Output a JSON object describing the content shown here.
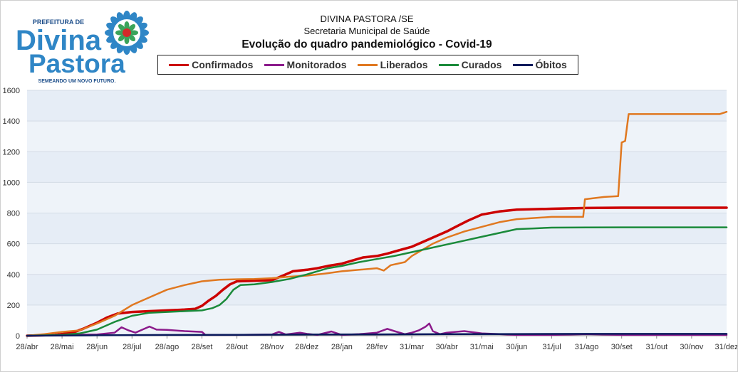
{
  "header": {
    "line1": "DIVINA PASTORA /SE",
    "line2": "Secretaria Municipal de Saúde",
    "title": "Evolução do quadro pandemiológico - Covid-19"
  },
  "logo": {
    "top_text": "PREFEITURA DE",
    "word1": "Divina",
    "word2": "Pastora",
    "tagline": "SEMEANDO UM NOVO FUTURO.",
    "color_primary": "#2f86c6",
    "color_dark": "#1d4e8a",
    "color_red": "#d42a2a"
  },
  "chart_data": {
    "type": "line",
    "title": "Evolução do quadro pandemiológico - Covid-19",
    "xlabel": "",
    "ylabel": "",
    "ylim": [
      0,
      1600
    ],
    "yticks": [
      "0",
      "200",
      "400",
      "600",
      "800",
      "1000",
      "1200",
      "1400",
      "1600"
    ],
    "x_tick_labels": [
      "28/abr",
      "28/mai",
      "28/jun",
      "28/jul",
      "28/ago",
      "28/set",
      "28/out",
      "28/nov",
      "28/dez",
      "28/jan",
      "28/fev",
      "31/mar",
      "30/abr",
      "31/mai",
      "30/jun",
      "31/jul",
      "31/ago",
      "30/set",
      "31/out",
      "30/nov",
      "31/dez"
    ],
    "x_unit": "month index from 28/abr",
    "grid": true,
    "legend_position": "top",
    "series": [
      {
        "name": "Confirmados",
        "color": "#cc0000",
        "width": 3.5,
        "points": [
          [
            0,
            0
          ],
          [
            0.8,
            5
          ],
          [
            1.3,
            20
          ],
          [
            1.6,
            45
          ],
          [
            2.0,
            85
          ],
          [
            2.3,
            120
          ],
          [
            2.6,
            145
          ],
          [
            3.0,
            155
          ],
          [
            3.5,
            160
          ],
          [
            4.0,
            165
          ],
          [
            4.5,
            170
          ],
          [
            4.8,
            175
          ],
          [
            5.0,
            195
          ],
          [
            5.2,
            230
          ],
          [
            5.4,
            260
          ],
          [
            5.6,
            300
          ],
          [
            5.8,
            335
          ],
          [
            6.0,
            355
          ],
          [
            6.5,
            358
          ],
          [
            7.0,
            362
          ],
          [
            7.3,
            390
          ],
          [
            7.6,
            420
          ],
          [
            8.0,
            430
          ],
          [
            8.3,
            440
          ],
          [
            8.6,
            455
          ],
          [
            9.0,
            470
          ],
          [
            9.3,
            490
          ],
          [
            9.6,
            510
          ],
          [
            10.0,
            520
          ],
          [
            10.3,
            535
          ],
          [
            10.6,
            555
          ],
          [
            11.0,
            580
          ],
          [
            11.3,
            610
          ],
          [
            11.6,
            640
          ],
          [
            12.0,
            680
          ],
          [
            12.3,
            715
          ],
          [
            12.6,
            750
          ],
          [
            13.0,
            790
          ],
          [
            13.5,
            810
          ],
          [
            14.0,
            822
          ],
          [
            15.0,
            828
          ],
          [
            16.0,
            833
          ],
          [
            17.0,
            835
          ],
          [
            20.0,
            835
          ]
        ]
      },
      {
        "name": "Monitorados",
        "color": "#8b1a8b",
        "width": 2.5,
        "points": [
          [
            0,
            0
          ],
          [
            1.0,
            5
          ],
          [
            2.0,
            8
          ],
          [
            2.5,
            20
          ],
          [
            2.7,
            55
          ],
          [
            2.9,
            35
          ],
          [
            3.1,
            20
          ],
          [
            3.3,
            40
          ],
          [
            3.5,
            60
          ],
          [
            3.7,
            40
          ],
          [
            4.0,
            38
          ],
          [
            4.5,
            30
          ],
          [
            5.0,
            25
          ],
          [
            5.1,
            5
          ],
          [
            6.0,
            5
          ],
          [
            7.0,
            8
          ],
          [
            7.2,
            25
          ],
          [
            7.4,
            8
          ],
          [
            7.8,
            20
          ],
          [
            8.0,
            12
          ],
          [
            8.3,
            5
          ],
          [
            8.7,
            28
          ],
          [
            9.0,
            5
          ],
          [
            9.5,
            10
          ],
          [
            10.0,
            20
          ],
          [
            10.3,
            45
          ],
          [
            10.5,
            30
          ],
          [
            10.8,
            10
          ],
          [
            11.0,
            20
          ],
          [
            11.2,
            35
          ],
          [
            11.4,
            60
          ],
          [
            11.5,
            80
          ],
          [
            11.6,
            30
          ],
          [
            11.8,
            10
          ],
          [
            12.0,
            20
          ],
          [
            12.5,
            30
          ],
          [
            13.0,
            15
          ],
          [
            13.5,
            10
          ],
          [
            14.0,
            5
          ],
          [
            15.0,
            5
          ],
          [
            16.0,
            10
          ],
          [
            17.0,
            5
          ],
          [
            20.0,
            5
          ]
        ]
      },
      {
        "name": "Liberados",
        "color": "#e07820",
        "width": 2.5,
        "points": [
          [
            0,
            0
          ],
          [
            0.5,
            10
          ],
          [
            1.0,
            25
          ],
          [
            1.5,
            35
          ],
          [
            2.0,
            80
          ],
          [
            2.5,
            130
          ],
          [
            3.0,
            200
          ],
          [
            3.3,
            230
          ],
          [
            3.6,
            260
          ],
          [
            4.0,
            300
          ],
          [
            4.5,
            330
          ],
          [
            5.0,
            355
          ],
          [
            5.5,
            365
          ],
          [
            6.0,
            368
          ],
          [
            6.5,
            370
          ],
          [
            7.0,
            375
          ],
          [
            7.5,
            385
          ],
          [
            8.0,
            392
          ],
          [
            8.5,
            405
          ],
          [
            9.0,
            420
          ],
          [
            9.5,
            430
          ],
          [
            10.0,
            440
          ],
          [
            10.2,
            425
          ],
          [
            10.4,
            460
          ],
          [
            10.8,
            480
          ],
          [
            11.0,
            520
          ],
          [
            11.3,
            560
          ],
          [
            11.6,
            600
          ],
          [
            12.0,
            640
          ],
          [
            12.5,
            680
          ],
          [
            13.0,
            710
          ],
          [
            13.5,
            740
          ],
          [
            14.0,
            760
          ],
          [
            15.0,
            775
          ],
          [
            15.9,
            775
          ],
          [
            15.95,
            890
          ],
          [
            16.5,
            905
          ],
          [
            16.9,
            910
          ],
          [
            17.0,
            1260
          ],
          [
            17.1,
            1270
          ],
          [
            17.2,
            1445
          ],
          [
            19.8,
            1445
          ],
          [
            20.0,
            1460
          ]
        ]
      },
      {
        "name": "Curados",
        "color": "#1a8a3a",
        "width": 2.5,
        "points": [
          [
            0,
            0
          ],
          [
            1.0,
            5
          ],
          [
            1.5,
            15
          ],
          [
            2.0,
            40
          ],
          [
            2.5,
            90
          ],
          [
            3.0,
            130
          ],
          [
            3.5,
            150
          ],
          [
            4.0,
            155
          ],
          [
            4.5,
            160
          ],
          [
            5.0,
            165
          ],
          [
            5.3,
            180
          ],
          [
            5.5,
            200
          ],
          [
            5.7,
            240
          ],
          [
            5.9,
            300
          ],
          [
            6.1,
            330
          ],
          [
            6.5,
            335
          ],
          [
            7.0,
            350
          ],
          [
            7.5,
            370
          ],
          [
            8.0,
            400
          ],
          [
            8.3,
            420
          ],
          [
            8.6,
            440
          ],
          [
            9.0,
            455
          ],
          [
            9.5,
            480
          ],
          [
            10.0,
            500
          ],
          [
            10.5,
            520
          ],
          [
            11.0,
            545
          ],
          [
            11.5,
            570
          ],
          [
            12.0,
            595
          ],
          [
            12.5,
            620
          ],
          [
            13.0,
            645
          ],
          [
            13.5,
            670
          ],
          [
            14.0,
            695
          ],
          [
            14.5,
            700
          ],
          [
            15.0,
            705
          ],
          [
            16.0,
            706
          ],
          [
            17.0,
            707
          ],
          [
            20.0,
            707
          ]
        ]
      },
      {
        "name": "Óbitos",
        "color": "#0a1a5c",
        "width": 2.5,
        "points": [
          [
            0,
            0
          ],
          [
            2.0,
            3
          ],
          [
            4.0,
            5
          ],
          [
            6.0,
            6
          ],
          [
            8.0,
            8
          ],
          [
            10.0,
            9
          ],
          [
            12.0,
            10
          ],
          [
            14.0,
            11
          ],
          [
            16.0,
            12
          ],
          [
            18.0,
            12
          ],
          [
            20.0,
            12
          ]
        ]
      }
    ]
  }
}
